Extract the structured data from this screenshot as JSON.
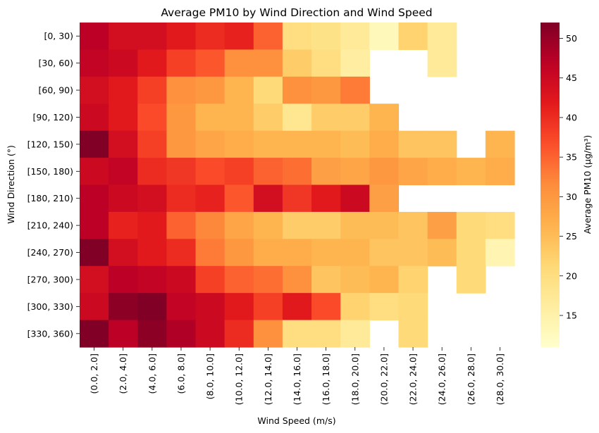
{
  "chart_data": {
    "type": "heatmap",
    "title": "Average PM10 by Wind Direction and Wind Speed",
    "xlabel": "Wind Speed (m/s)",
    "ylabel": "Wind Direction (°)",
    "x_categories": [
      "(0.0, 2.0]",
      "(2.0, 4.0]",
      "(4.0, 6.0]",
      "(6.0, 8.0]",
      "(8.0, 10.0]",
      "(10.0, 12.0]",
      "(12.0, 14.0]",
      "(14.0, 16.0]",
      "(16.0, 18.0]",
      "(18.0, 20.0]",
      "(20.0, 22.0]",
      "(22.0, 24.0]",
      "(24.0, 26.0]",
      "(26.0, 28.0]",
      "(28.0, 30.0]"
    ],
    "y_categories": [
      "[0, 30)",
      "[30, 60)",
      "[60, 90)",
      "[90, 120)",
      "[120, 150)",
      "[150, 180)",
      "[180, 210)",
      "[210, 240)",
      "[240, 270)",
      "[270, 300)",
      "[300, 330)",
      "[330, 360)"
    ],
    "values": [
      [
        47,
        44,
        44,
        42,
        40,
        41,
        35,
        20,
        19,
        17,
        13,
        22,
        17,
        null,
        null
      ],
      [
        46,
        45,
        42,
        38,
        36,
        31,
        31,
        23,
        20,
        16,
        null,
        null,
        17,
        null,
        null
      ],
      [
        44,
        42,
        38,
        31,
        30,
        26,
        21,
        31,
        30,
        33,
        null,
        null,
        null,
        null,
        null
      ],
      [
        45,
        42,
        37,
        30,
        26,
        26,
        23,
        18,
        23,
        23,
        26,
        null,
        null,
        null,
        null
      ],
      [
        52,
        44,
        38,
        30,
        28,
        27,
        26,
        26,
        26,
        25,
        27,
        24,
        24,
        null,
        26
      ],
      [
        45,
        46,
        40,
        39,
        37,
        38,
        35,
        34,
        29,
        28,
        30,
        28,
        27,
        26,
        27
      ],
      [
        47,
        45,
        44,
        40,
        41,
        36,
        44,
        39,
        42,
        45,
        29,
        null,
        null,
        null,
        null
      ],
      [
        47,
        41,
        42,
        35,
        32,
        28,
        26,
        23,
        23,
        25,
        25,
        24,
        29,
        21,
        20
      ],
      [
        52,
        44,
        42,
        40,
        33,
        30,
        27,
        27,
        26,
        26,
        24,
        24,
        25,
        21,
        14
      ],
      [
        44,
        47,
        46,
        45,
        38,
        35,
        34,
        31,
        24,
        25,
        26,
        22,
        null,
        21,
        null
      ],
      [
        45,
        51,
        52,
        46,
        45,
        42,
        38,
        42,
        37,
        22,
        20,
        21,
        null,
        null,
        null
      ],
      [
        52,
        47,
        51,
        48,
        45,
        40,
        31,
        20,
        20,
        17,
        null,
        21,
        null,
        null,
        null
      ]
    ],
    "vmin": 11,
    "vmax": 52,
    "colorbar": {
      "label": "Average PM10 (μg/m³)",
      "ticks": [
        "15",
        "20",
        "25",
        "30",
        "35",
        "40",
        "45",
        "50"
      ]
    },
    "colormap": "YlOrRd",
    "grid": false
  }
}
